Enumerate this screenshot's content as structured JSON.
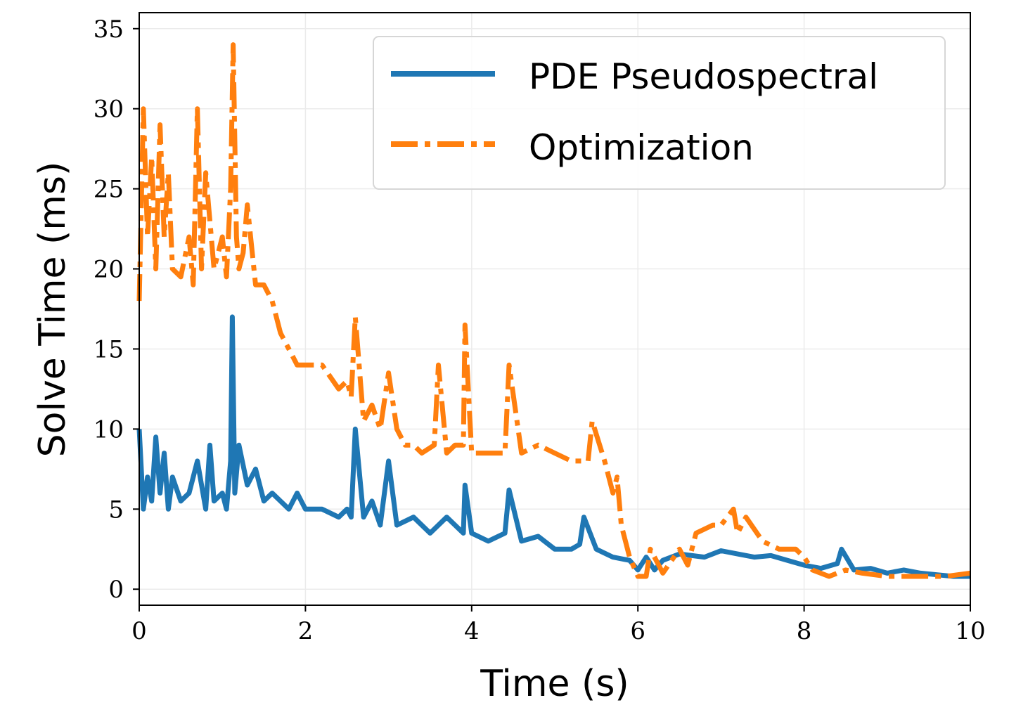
{
  "chart_data": {
    "type": "line",
    "xlabel": "Time (s)",
    "ylabel": "Solve Time (ms)",
    "xlim": [
      0,
      10
    ],
    "ylim": [
      -1,
      36
    ],
    "x_ticks": [
      "0",
      "2",
      "4",
      "6",
      "8",
      "10"
    ],
    "y_ticks": [
      "0",
      "5",
      "10",
      "15",
      "20",
      "25",
      "30",
      "35"
    ],
    "grid": true,
    "legend_position": "top-right",
    "colors": {
      "pde": "#1f77b4",
      "opt": "#ff7f0e"
    },
    "series": [
      {
        "name": "PDE Pseudospectral",
        "style": "solid",
        "x": [
          0,
          0.05,
          0.1,
          0.15,
          0.2,
          0.25,
          0.3,
          0.35,
          0.4,
          0.5,
          0.6,
          0.7,
          0.8,
          0.85,
          0.9,
          1.0,
          1.05,
          1.1,
          1.12,
          1.15,
          1.2,
          1.3,
          1.4,
          1.5,
          1.6,
          1.7,
          1.8,
          1.9,
          2.0,
          2.2,
          2.4,
          2.5,
          2.55,
          2.6,
          2.7,
          2.8,
          2.9,
          3.0,
          3.1,
          3.3,
          3.5,
          3.7,
          3.9,
          3.92,
          4.0,
          4.2,
          4.4,
          4.45,
          4.6,
          4.8,
          5.0,
          5.2,
          5.3,
          5.35,
          5.5,
          5.7,
          5.9,
          6.0,
          6.1,
          6.2,
          6.3,
          6.5,
          6.8,
          7.0,
          7.2,
          7.4,
          7.6,
          7.8,
          8.0,
          8.2,
          8.4,
          8.45,
          8.6,
          8.8,
          9.0,
          9.2,
          9.4,
          9.6,
          9.8,
          10.0
        ],
        "y": [
          10,
          5,
          7,
          5.5,
          9.5,
          6,
          8.5,
          5,
          7,
          5.5,
          6,
          8,
          5,
          9,
          5.5,
          6,
          5,
          8,
          17,
          6,
          9,
          6.5,
          7.5,
          5.5,
          6,
          5.5,
          5,
          6,
          5,
          5,
          4.5,
          5,
          4.5,
          10,
          4.5,
          5.5,
          4,
          8,
          4,
          4.5,
          3.5,
          4.5,
          3.5,
          6.5,
          3.5,
          3,
          3.5,
          6.2,
          3,
          3.3,
          2.5,
          2.5,
          2.8,
          4.5,
          2.5,
          2,
          1.8,
          1.2,
          2,
          1.2,
          1.8,
          2.2,
          2,
          2.4,
          2.2,
          2,
          2.1,
          1.8,
          1.5,
          1.3,
          1.6,
          2.5,
          1.2,
          1.3,
          1,
          1.2,
          1,
          0.9,
          0.8,
          0.8
        ]
      },
      {
        "name": "Optimization",
        "style": "dashdot",
        "x": [
          0,
          0.05,
          0.1,
          0.15,
          0.2,
          0.25,
          0.3,
          0.35,
          0.4,
          0.5,
          0.6,
          0.65,
          0.7,
          0.75,
          0.8,
          0.9,
          1.0,
          1.05,
          1.1,
          1.13,
          1.17,
          1.2,
          1.25,
          1.3,
          1.4,
          1.5,
          1.6,
          1.7,
          1.8,
          1.9,
          2.0,
          2.2,
          2.4,
          2.5,
          2.55,
          2.6,
          2.7,
          2.8,
          2.9,
          3.0,
          3.1,
          3.2,
          3.3,
          3.4,
          3.55,
          3.6,
          3.7,
          3.8,
          3.9,
          3.92,
          4.0,
          4.2,
          4.4,
          4.45,
          4.6,
          4.8,
          5.0,
          5.2,
          5.4,
          5.45,
          5.6,
          5.7,
          5.75,
          5.8,
          5.9,
          6.0,
          6.1,
          6.15,
          6.3,
          6.5,
          6.6,
          6.7,
          6.9,
          7.0,
          7.15,
          7.2,
          7.3,
          7.5,
          7.7,
          7.9,
          8.0,
          8.1,
          8.3,
          8.5,
          8.7,
          9.0,
          9.3,
          9.5,
          9.7,
          10.0
        ],
        "y": [
          18,
          30,
          22,
          27,
          20,
          29,
          22,
          26,
          20,
          19.5,
          22,
          19,
          30,
          20,
          26,
          20,
          22,
          19.5,
          25,
          34,
          22,
          20,
          21,
          24,
          19,
          19,
          18,
          16,
          15,
          14,
          14,
          14,
          12.5,
          13,
          12,
          17,
          10.5,
          11.5,
          10,
          13.5,
          10,
          9,
          9,
          8.5,
          9,
          14,
          8.5,
          9,
          9,
          16.5,
          8.5,
          8.5,
          8.5,
          14,
          8.5,
          9,
          8.5,
          8,
          8,
          10.5,
          8,
          6,
          7,
          4,
          2,
          0.8,
          0.8,
          2.5,
          1,
          2.5,
          1.5,
          3.5,
          4,
          4,
          5,
          3.5,
          4.5,
          3,
          2.5,
          2.5,
          2,
          1.2,
          0.8,
          1.2,
          1,
          0.8,
          0.8,
          0.8,
          0.8,
          1
        ]
      }
    ]
  }
}
